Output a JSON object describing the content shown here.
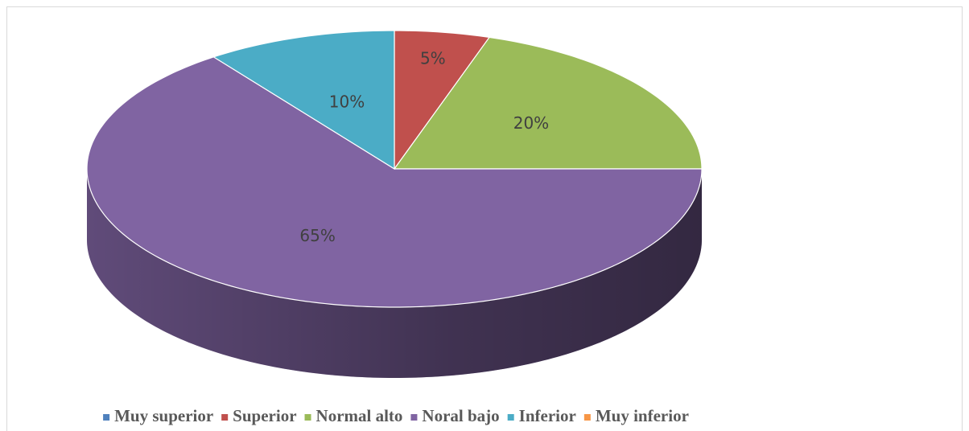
{
  "chart_data": {
    "type": "pie",
    "categories": [
      "Muy superior",
      "Superior",
      "Normal alto",
      "Noral bajo",
      "Inferior",
      "Muy inferior"
    ],
    "values": [
      0,
      5,
      20,
      65,
      10,
      0
    ],
    "value_labels": [
      null,
      "5%",
      "20%",
      "65%",
      "10%",
      null
    ],
    "colors": [
      "#4f81bd",
      "#c0504d",
      "#9bbb59",
      "#8064a2",
      "#4bacc6",
      "#f79646"
    ],
    "legend": "bottom"
  }
}
